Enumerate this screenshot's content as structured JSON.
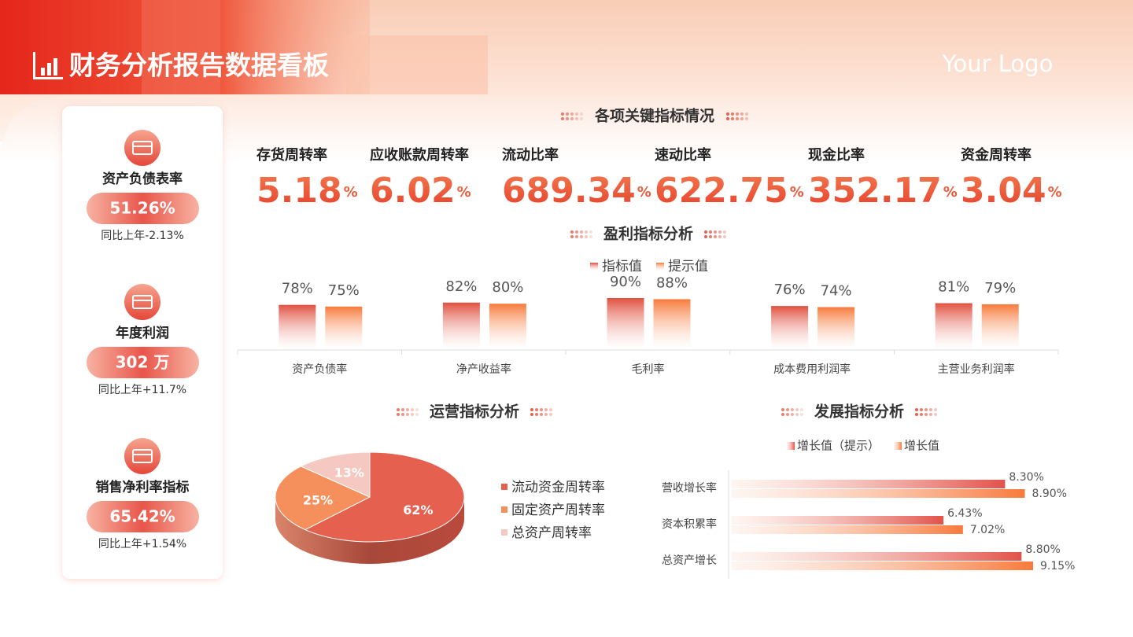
{
  "header": {
    "title": "财务分析报告数据看板",
    "logo": "Your Logo"
  },
  "summary_cards": [
    {
      "label": "资产负债表率",
      "value": "51.26%",
      "note": "同比上年-2.13%"
    },
    {
      "label": "年度利润",
      "value": "302 万",
      "note": "同比上年+11.7%"
    },
    {
      "label": "销售净利率指标",
      "value": "65.42%",
      "note": "同比上年+1.54%"
    }
  ],
  "key_indicators": {
    "title": "各项关键指标情况",
    "items": [
      {
        "label": "存货周转率",
        "value": 5.18,
        "unit": "%"
      },
      {
        "label": "应收账款周转率",
        "value": 6.02,
        "unit": "%"
      },
      {
        "label": "流动比率",
        "value": 689.34,
        "unit": "%"
      },
      {
        "label": "速动比率",
        "value": 622.75,
        "unit": "%"
      },
      {
        "label": "现金比率",
        "value": 352.17,
        "unit": "%"
      },
      {
        "label": "资金周转率",
        "value": 3.04,
        "unit": "%"
      }
    ]
  },
  "chart_data": [
    {
      "type": "bar",
      "title": "盈利指标分析",
      "categories": [
        "资产负债率",
        "净产收益率",
        "毛利率",
        "成本费用利润率",
        "主营业务利润率"
      ],
      "series": [
        {
          "name": "指标值",
          "color": "#e0503f",
          "values": [
            78,
            82,
            90,
            76,
            81
          ],
          "value_labels": [
            "78%",
            "82%",
            "90%",
            "76%",
            "81%"
          ]
        },
        {
          "name": "提示值",
          "color": "#f77a3a",
          "values": [
            75,
            80,
            88,
            74,
            79
          ],
          "value_labels": [
            "75%",
            "80%",
            "88%",
            "74%",
            "79%"
          ]
        }
      ]
    },
    {
      "type": "pie",
      "title": "运营指标分析",
      "categories": [
        "流动资金周转率",
        "固定资产周转率",
        "总资产周转率"
      ],
      "values": [
        62,
        25,
        13
      ],
      "value_labels": [
        "62%",
        "25%",
        "13%"
      ],
      "colors": [
        "#e5604f",
        "#f5905c",
        "#f5c9c2"
      ]
    },
    {
      "type": "hbar",
      "title": "发展指标分析",
      "categories": [
        "营收增长率",
        "资本积累率",
        "总资产增长"
      ],
      "series": [
        {
          "name": "增长值（提示）",
          "color": "#e2524a",
          "values": [
            8.3,
            6.43,
            8.8
          ],
          "value_labels": [
            "8.30%",
            "6.43%",
            "8.80%"
          ]
        },
        {
          "name": "增长值",
          "color": "#f87a3c",
          "values": [
            8.9,
            7.02,
            9.15
          ],
          "value_labels": [
            "8.90%",
            "7.02%",
            "9.15%"
          ]
        }
      ]
    }
  ]
}
